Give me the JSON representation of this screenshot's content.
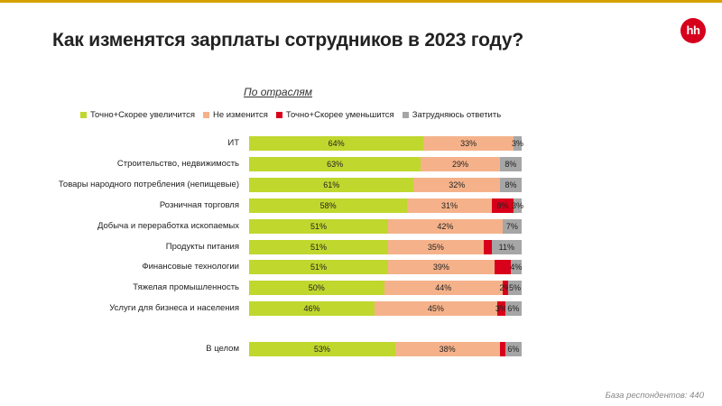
{
  "page": {
    "title": "Как изменятся зарплаты сотрудников в 2023 году?",
    "logo_text": "hh",
    "footnote": "База респондентов: 440"
  },
  "chart_data": {
    "type": "bar",
    "orientation": "horizontal-stacked-100",
    "title": "Как изменятся зарплаты сотрудников в 2023 году?",
    "subtitle": "По отраслям",
    "categories": [
      "ИТ",
      "Строительство, недвижимость",
      "Товары народного потребления (непищевые)",
      "Розничная торговля",
      "Добыча и переработка ископаемых",
      "Продукты питания",
      "Финансовые технологии",
      "Тяжелая промышленность",
      "Услуги для бизнеса и населения",
      "В целом"
    ],
    "series": [
      {
        "name": "Точно+Скорее увеличится",
        "color": "#c0d72e",
        "values": [
          64,
          63,
          61,
          58,
          51,
          51,
          51,
          50,
          46,
          53
        ],
        "labels": [
          "64%",
          "63%",
          "61%",
          "58%",
          "51%",
          "51%",
          "51%",
          "50%",
          "46%",
          "53%"
        ]
      },
      {
        "name": "Не изменится",
        "color": "#f5b28a",
        "values": [
          33,
          29,
          32,
          31,
          42,
          35,
          39,
          44,
          45,
          38
        ],
        "labels": [
          "33%",
          "29%",
          "32%",
          "31%",
          "42%",
          "35%",
          "39%",
          "44%",
          "45%",
          "38%"
        ]
      },
      {
        "name": "Точно+Скорее уменьшится",
        "color": "#d9001b",
        "values": [
          0,
          0,
          0,
          8,
          0,
          3,
          6,
          2,
          3,
          2
        ],
        "labels": [
          "",
          "",
          "",
          "8%",
          "",
          "",
          "",
          "2%",
          "3%",
          ""
        ]
      },
      {
        "name": "Затрудняюсь ответить",
        "color": "#a6a6a6",
        "values": [
          3,
          8,
          8,
          3,
          7,
          11,
          4,
          5,
          6,
          6
        ],
        "labels": [
          "3%",
          "8%",
          "8%",
          "3%",
          "7%",
          "11%",
          "4%",
          "5%",
          "6%",
          "6%"
        ]
      }
    ]
  }
}
